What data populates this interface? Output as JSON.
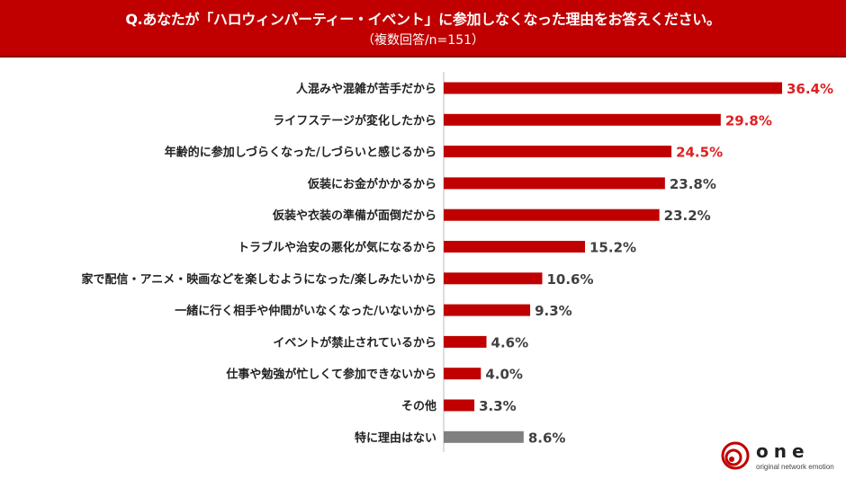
{
  "header": {
    "title": "Q.あなたが「ハロウィンパーティー・イベント」に参加しなくなった理由をお答えください。",
    "subtitle": "（複数回答/n=151）"
  },
  "logo": {
    "name": "one",
    "tagline": "original network emotion"
  },
  "colors": {
    "accent": "#c00000",
    "highlight_text": "#e02020",
    "normal_text": "#404040",
    "other_bar": "#808080"
  },
  "chart_data": {
    "type": "bar",
    "orientation": "horizontal",
    "unit": "%",
    "categories": [
      "人混みや混雑が苦手だから",
      "ライフステージが変化したから",
      "年齢的に参加しづらくなった/しづらいと感じるから",
      "仮装にお金がかかるから",
      "仮装や衣装の準備が面倒だから",
      "トラブルや治安の悪化が気になるから",
      "家で配信・アニメ・映画などを楽しむようになった/楽しみたいから",
      "一緒に行く相手や仲間がいなくなった/いないから",
      "イベントが禁止されているから",
      "仕事や勉強が忙しくて参加できないから",
      "その他",
      "特に理由はない"
    ],
    "values": [
      36.4,
      29.8,
      24.5,
      23.8,
      23.2,
      15.2,
      10.6,
      9.3,
      4.6,
      4.0,
      3.3,
      8.6
    ],
    "labels": [
      "36.4%",
      "29.8%",
      "24.5%",
      "23.8%",
      "23.2%",
      "15.2%",
      "10.6%",
      "9.3%",
      "4.6%",
      "4.0%",
      "3.3%",
      "8.6%"
    ],
    "highlight_top": 3,
    "gray_last": true,
    "xlim": [
      0,
      36.4
    ]
  }
}
